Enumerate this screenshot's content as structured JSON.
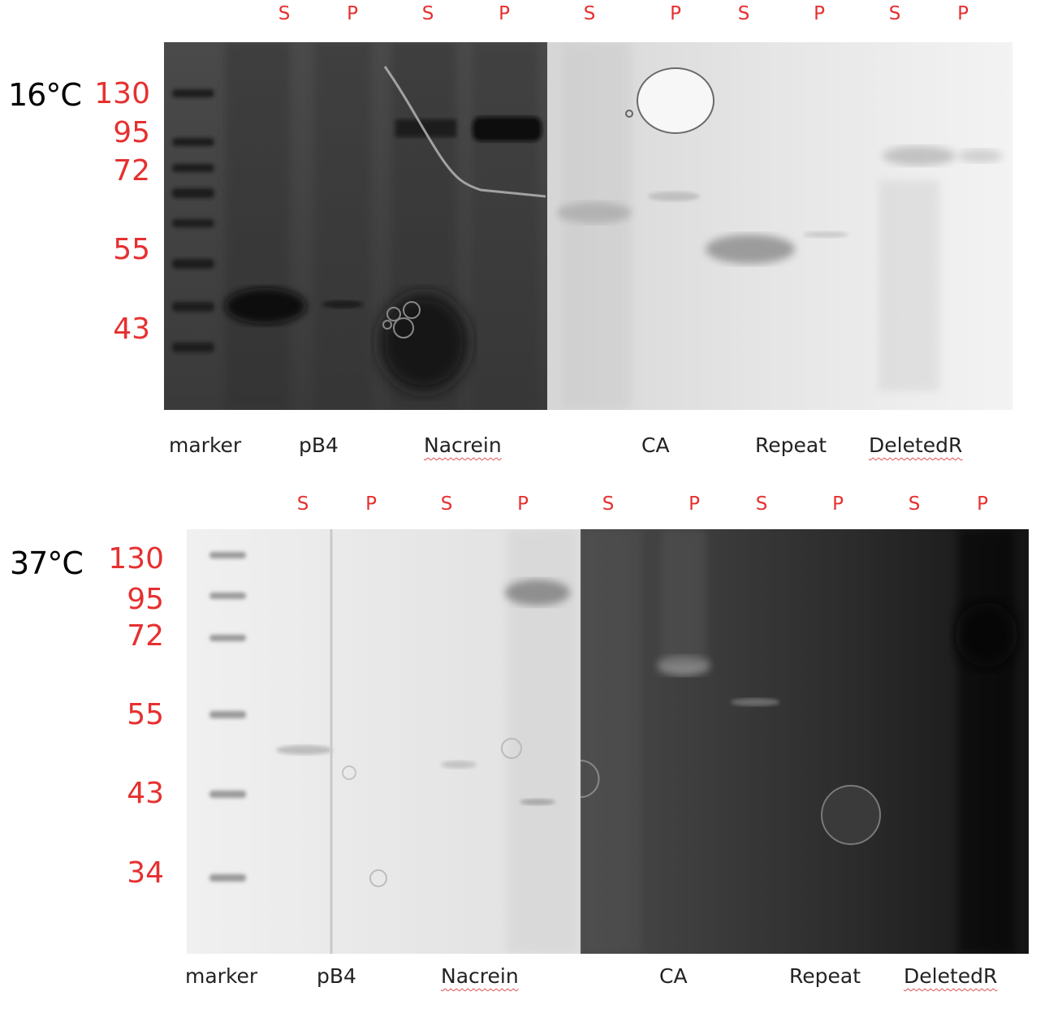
{
  "panels": [
    {
      "temperature": "16°C",
      "markers": [
        "130",
        "95",
        "72",
        "55",
        "43"
      ],
      "sp_labels": [
        "S",
        "P",
        "S",
        "P",
        "S",
        "P",
        "S",
        "P",
        "S",
        "P"
      ],
      "lanes": [
        "marker",
        "pB4",
        "Nacrein",
        "CA",
        "Repeat",
        "DeletedR"
      ]
    },
    {
      "temperature": "37°C",
      "markers": [
        "130",
        "95",
        "72",
        "55",
        "43",
        "34"
      ],
      "sp_labels": [
        "S",
        "P",
        "S",
        "P",
        "S",
        "P",
        "S",
        "P",
        "S",
        "P"
      ],
      "lanes": [
        "marker",
        "pB4",
        "Nacrein",
        "CA",
        "Repeat",
        "DeletedR"
      ]
    }
  ],
  "colors": {
    "label_red": "#e63030",
    "label_black": "#000000"
  }
}
